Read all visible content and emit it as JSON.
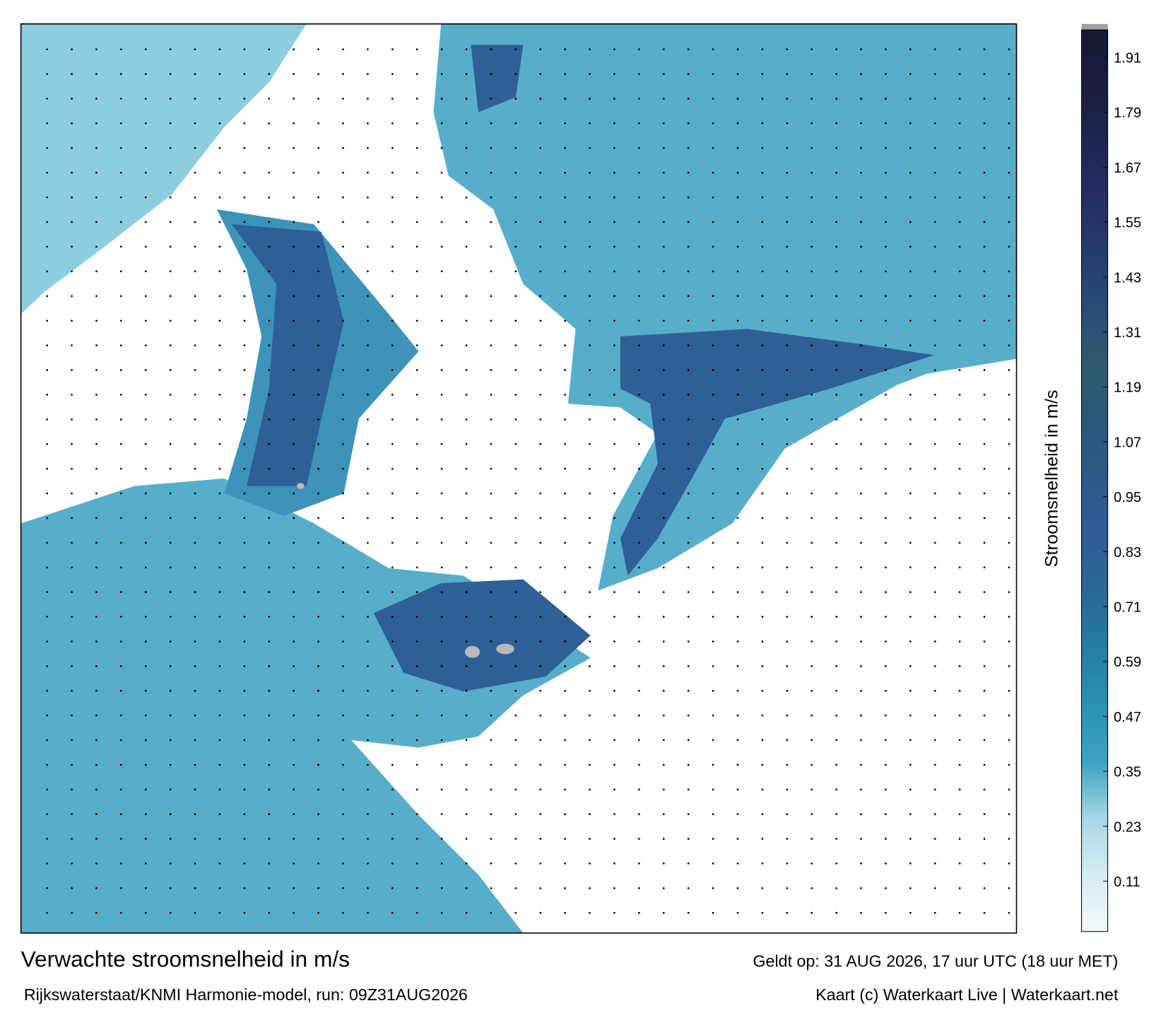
{
  "header": {
    "title": "Verwachte stroomsnelheid in m/s",
    "subtitle": "Rijkswaterstaat/KNMI Harmonie-model, run: 09Z31AUG2026",
    "valid": "Geldt op: 31 AUG 2026, 17 uur UTC (18 uur MET)",
    "credit": "Kaart (c) Waterkaart Live | Waterkaart.net"
  },
  "colorbar": {
    "label": "Stroomsnelheid in m/s",
    "lim": [
      0,
      1.97
    ],
    "ticks": [
      0.11,
      0.23,
      0.35,
      0.47,
      0.59,
      0.71,
      0.83,
      0.95,
      1.07,
      1.19,
      1.31,
      1.43,
      1.55,
      1.67,
      1.79,
      1.91
    ],
    "colors": [
      "#f2f8fa",
      "#d6ecf2",
      "#a8d7e5",
      "#3aa3c4",
      "#2b91b3",
      "#237f9f",
      "#2a6796",
      "#2f5c97",
      "#2d5a8a",
      "#2c587a",
      "#2f5b6f",
      "#294c79",
      "#263c70",
      "#232f63",
      "#1f2654",
      "#1b1d3c",
      "#161a33"
    ]
  }
}
